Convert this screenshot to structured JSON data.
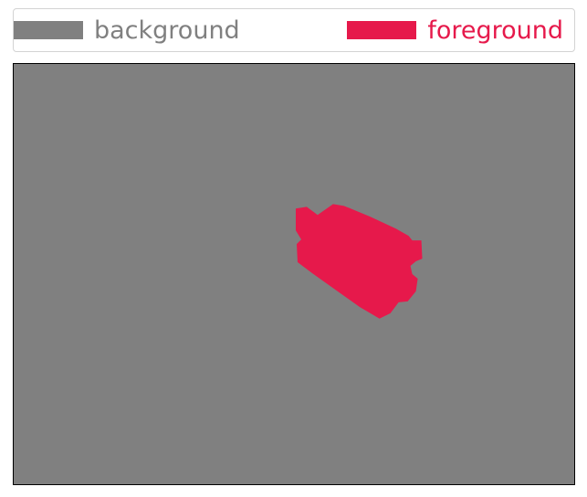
{
  "legend": {
    "items": [
      {
        "label": "background",
        "color": "#808080"
      },
      {
        "label": "foreground",
        "color": "#e6194b"
      }
    ]
  },
  "image": {
    "background_color": "#808080",
    "foreground_color": "#e6194b"
  }
}
